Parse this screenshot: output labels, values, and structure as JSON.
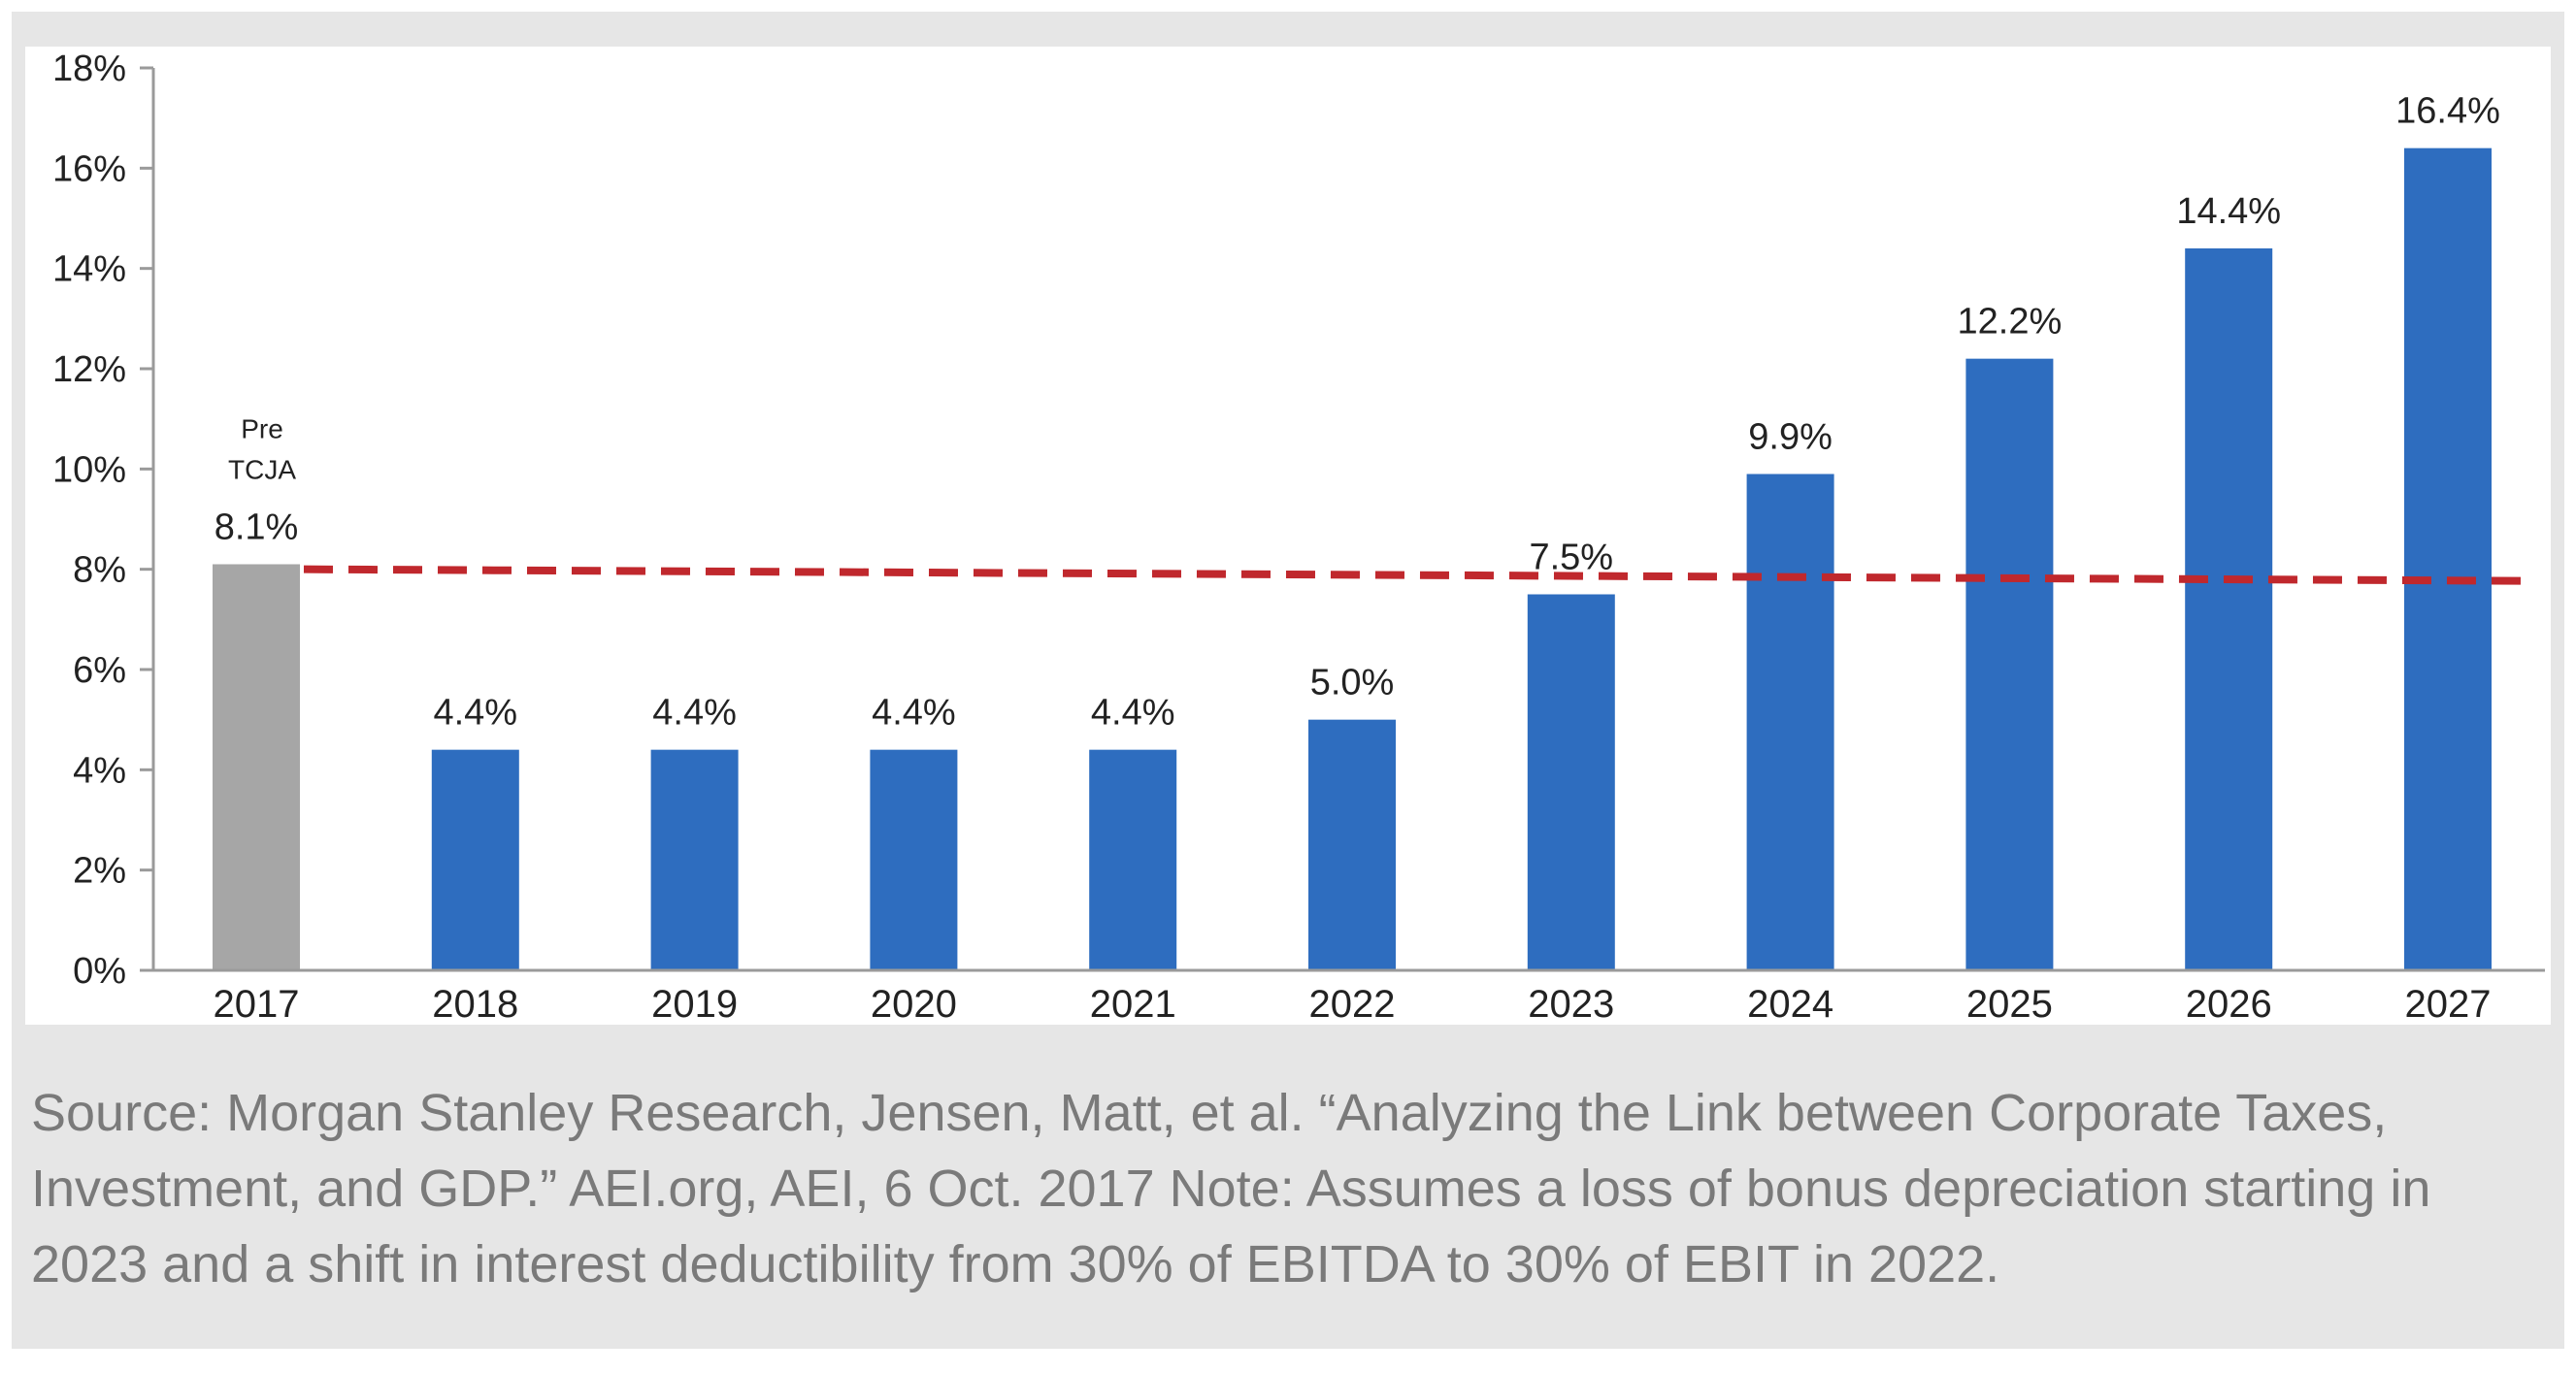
{
  "chart_data": {
    "type": "bar",
    "categories": [
      "2017",
      "2018",
      "2019",
      "2020",
      "2021",
      "2022",
      "2023",
      "2024",
      "2025",
      "2026",
      "2027"
    ],
    "values": [
      8.1,
      4.4,
      4.4,
      4.4,
      4.4,
      5.0,
      7.5,
      9.9,
      12.2,
      14.4,
      16.4
    ],
    "data_labels": [
      "8.1%",
      "4.4%",
      "4.4%",
      "4.4%",
      "4.4%",
      "5.0%",
      "7.5%",
      "9.9%",
      "12.2%",
      "14.4%",
      "16.4%"
    ],
    "annotation": [
      "Pre",
      "TCJA"
    ],
    "reference_line": {
      "value": 8.0,
      "style": "dashed",
      "color": "#c0282d"
    },
    "ylim": [
      0,
      18
    ],
    "yticks": [
      "0%",
      "2%",
      "4%",
      "6%",
      "8%",
      "10%",
      "12%",
      "14%",
      "16%",
      "18%"
    ],
    "title": "",
    "xlabel": "",
    "ylabel": "",
    "colors": {
      "pre_tcja": "#a6a6a6",
      "bars": "#2e6dbf",
      "axis": "#9a9a9a",
      "text": "#222222"
    },
    "grid": false
  },
  "source_note": "Source: Morgan Stanley Research, Jensen, Matt, et al. “Analyzing the Link between Corporate Taxes, Investment, and GDP.” AEI.org, AEI, 6 Oct. 2017 Note: Assumes a loss of bonus depreciation starting in 2023 and a shift in interest deductibility from 30% of EBITDA to 30% of EBIT in 2022."
}
